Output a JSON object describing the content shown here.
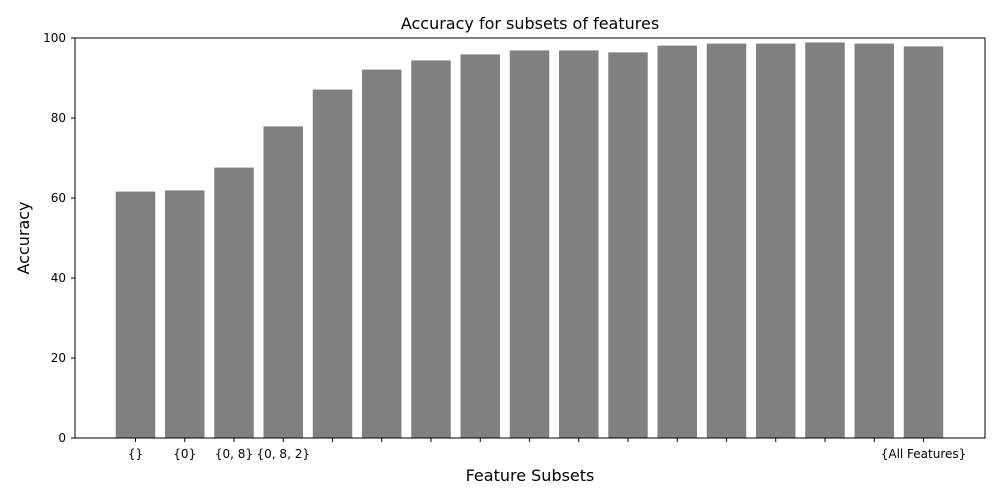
{
  "chart_data": {
    "type": "bar",
    "title": "Accuracy for subsets of features",
    "xlabel": "Feature Subsets",
    "ylabel": "Accuracy",
    "ylim": [
      0,
      100
    ],
    "yticks": [
      0,
      20,
      40,
      60,
      80,
      100
    ],
    "categories": [
      "{}",
      "{0}",
      "{0, 8}",
      "{0, 8, 2}",
      "",
      "",
      "",
      "",
      "",
      "",
      "",
      "",
      "",
      "",
      "",
      "",
      "{All Features}"
    ],
    "values": [
      61.6,
      61.9,
      67.6,
      77.9,
      87.1,
      92.1,
      94.4,
      95.9,
      96.9,
      96.9,
      96.4,
      98.1,
      98.6,
      98.6,
      98.9,
      98.6,
      97.9
    ],
    "bar_color": "#808080",
    "grid": false,
    "legend": "none"
  }
}
